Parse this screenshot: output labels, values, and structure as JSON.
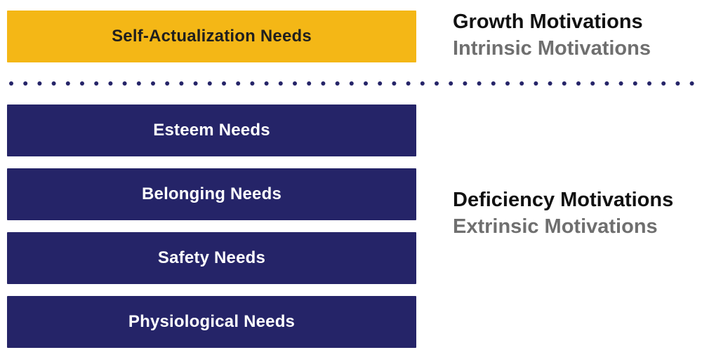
{
  "growth": {
    "box_label": "Self-Actualization Needs",
    "primary": "Growth Motivations",
    "secondary": "Intrinsic Motivations",
    "color": "#F4B716"
  },
  "deficiency": {
    "boxes": [
      "Esteem Needs",
      "Belonging Needs",
      "Safety Needs",
      "Physiological Needs"
    ],
    "primary": "Deficiency Motivations",
    "secondary": "Extrinsic Motivations",
    "color": "#252468"
  },
  "divider": {
    "style": "dotted",
    "color": "#252468"
  }
}
